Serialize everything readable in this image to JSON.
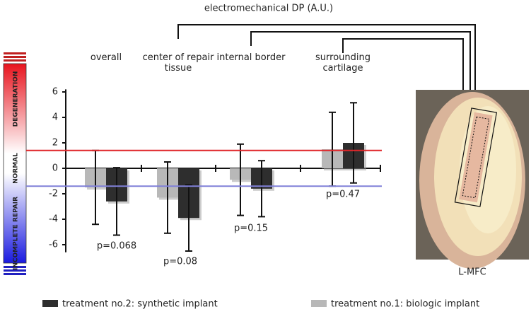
{
  "chart_data": {
    "type": "bar",
    "title": "electromechanical DP (A.U.)",
    "categories": [
      "overall",
      "center of repair tissue",
      "internal border",
      "surrounding cartilage"
    ],
    "series": [
      {
        "name": "treatment no.2: synthetic implant",
        "color": "#2e2e2e",
        "values": [
          -2.6,
          -3.9,
          -1.6,
          2.0
        ],
        "errors": [
          2.65,
          2.6,
          2.2,
          3.15
        ]
      },
      {
        "name": "treatment no.1: biologic implant",
        "color": "#b8b8b8",
        "values": [
          -1.5,
          -2.3,
          -0.9,
          1.5
        ],
        "errors": [
          2.9,
          2.8,
          2.8,
          2.9
        ]
      }
    ],
    "p_values": [
      "p=0.068",
      "p=0.08",
      "p=0.15",
      "p=0.47"
    ],
    "ylim": [
      -6.6,
      6.2
    ],
    "yticks": [
      -6,
      -4,
      -2,
      0,
      2,
      4,
      6
    ],
    "reference_lines": [
      {
        "value": 1.4,
        "color": "#e0262a"
      },
      {
        "value": -1.4,
        "color": "#8080d8"
      }
    ],
    "scale_labels": [
      "DEGENERATION",
      "NORMAL",
      "INCOMPLETE REPAIR"
    ],
    "image_label": "L-MFC"
  }
}
